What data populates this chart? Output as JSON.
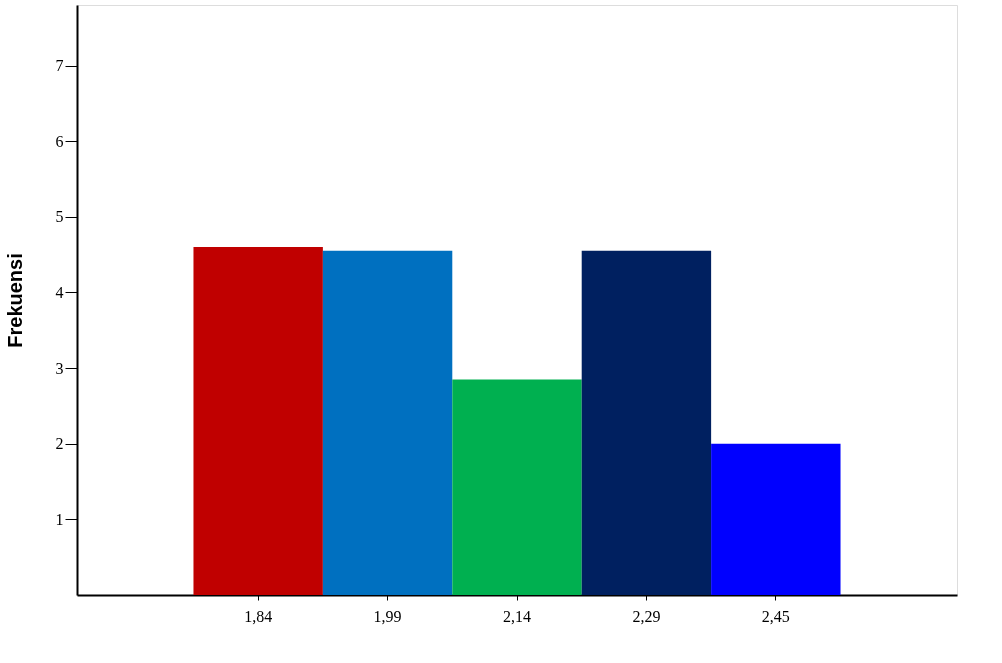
{
  "chart_data": {
    "type": "bar",
    "ylabel": "Frekuensi",
    "categories": [
      "1,84",
      "1,99",
      "2,14",
      "2,29",
      "2,45"
    ],
    "values": [
      4.6,
      4.55,
      2.85,
      4.55,
      2.0
    ],
    "colors": [
      "#c00000",
      "#0070c0",
      "#00b050",
      "#002060",
      "#0000ff"
    ],
    "ylim": [
      0,
      7.8
    ],
    "yticks": [
      1,
      2,
      3,
      4,
      5,
      6,
      7
    ],
    "grid": false,
    "legend": false
  }
}
